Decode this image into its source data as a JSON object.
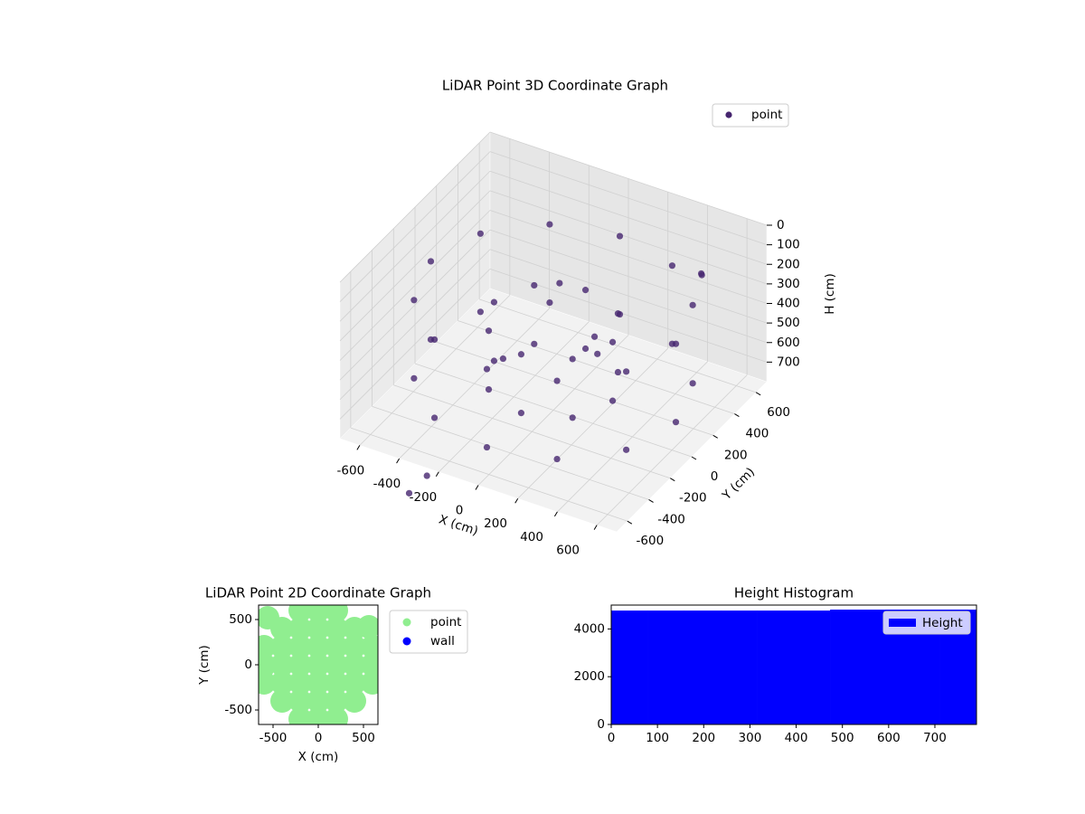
{
  "chart_data": [
    {
      "type": "scatter3d",
      "title": "LiDAR Point 3D Coordinate Graph",
      "xlabel": "X (cm)",
      "ylabel": "Y (cm)",
      "zlabel": "H (cm)",
      "xlim": [
        -700,
        700
      ],
      "ylim": [
        -700,
        700
      ],
      "zlim": [
        800,
        0
      ],
      "xticks": [
        -600,
        -400,
        -200,
        0,
        200,
        400,
        600
      ],
      "yticks": [
        -600,
        -400,
        -200,
        0,
        200,
        400,
        600
      ],
      "zticks": [
        0,
        100,
        200,
        300,
        400,
        500,
        600,
        700
      ],
      "grid": true,
      "legend": "upper right",
      "series": [
        {
          "name": "point",
          "color": "#46256f",
          "x": [
            620,
            537,
            310,
            0,
            -310,
            -537,
            -620,
            -537,
            -310,
            0,
            310,
            537,
            620,
            537,
            310,
            0,
            -310,
            -537,
            -620,
            -537,
            -310,
            0,
            310,
            537,
            300,
            212,
            0,
            -212,
            -300,
            -212,
            0,
            212,
            300,
            212,
            0,
            -212,
            -300,
            -212,
            0,
            212,
            -50,
            100,
            -200,
            250,
            450,
            480,
            -350,
            -260
          ],
          "y": [
            0,
            310,
            537,
            620,
            537,
            310,
            0,
            -310,
            -537,
            -620,
            -537,
            -310,
            0,
            310,
            537,
            620,
            537,
            310,
            0,
            -310,
            -537,
            -620,
            -537,
            -310,
            0,
            212,
            300,
            212,
            0,
            -212,
            -300,
            -212,
            0,
            212,
            300,
            212,
            0,
            -212,
            -300,
            -212,
            150,
            200,
            -100,
            -50,
            550,
            500,
            -700,
            -700
          ],
          "z": [
            250,
            250,
            250,
            250,
            250,
            250,
            250,
            250,
            250,
            250,
            250,
            250,
            650,
            650,
            650,
            650,
            650,
            650,
            650,
            650,
            650,
            650,
            650,
            650,
            350,
            350,
            350,
            350,
            350,
            350,
            350,
            350,
            650,
            650,
            650,
            650,
            650,
            650,
            650,
            650,
            250,
            500,
            550,
            400,
            250,
            220,
            960,
            840
          ]
        }
      ]
    },
    {
      "type": "scatter",
      "title": "LiDAR Point 2D Coordinate Graph",
      "xlabel": "X (cm)",
      "ylabel": "Y (cm)",
      "xlim": [
        -660,
        660
      ],
      "ylim": [
        -660,
        660
      ],
      "xticks": [
        -500,
        0,
        500
      ],
      "yticks": [
        -500,
        0,
        500
      ],
      "legend": "outside right",
      "series": [
        {
          "name": "point",
          "color": "#90ee90",
          "x": [
            -200,
            0,
            200,
            -400,
            -200,
            0,
            200,
            400,
            -600,
            -400,
            -200,
            0,
            200,
            400,
            600,
            -600,
            -400,
            -200,
            0,
            200,
            400,
            600,
            -600,
            -400,
            -200,
            0,
            200,
            400,
            600,
            -400,
            -200,
            0,
            200,
            400,
            -200,
            0,
            200,
            -560,
            560,
            -620
          ],
          "y": [
            600,
            600,
            600,
            400,
            400,
            400,
            400,
            400,
            200,
            200,
            200,
            200,
            200,
            200,
            200,
            0,
            0,
            0,
            0,
            0,
            0,
            0,
            -200,
            -200,
            -200,
            -200,
            -200,
            -200,
            -200,
            -400,
            -400,
            -400,
            -400,
            -400,
            -600,
            -600,
            -600,
            520,
            420,
            -40
          ]
        },
        {
          "name": "wall",
          "color": "#0000ff",
          "x": [],
          "y": []
        }
      ]
    },
    {
      "type": "histogram",
      "title": "Height Histogram",
      "xlim": [
        0,
        790
      ],
      "ylim": [
        0,
        5000
      ],
      "xticks": [
        0,
        100,
        200,
        300,
        400,
        500,
        600,
        700
      ],
      "yticks": [
        0,
        2000,
        4000
      ],
      "legend": "upper right",
      "series": [
        {
          "name": "Height",
          "color": "#0000ff",
          "bins": [
            0,
            79,
            158,
            237,
            316,
            395,
            474,
            553,
            632,
            711,
            790
          ],
          "values": [
            4760,
            4760,
            4760,
            4760,
            4760,
            4760,
            4800,
            4800,
            4800,
            4800
          ]
        }
      ]
    }
  ]
}
